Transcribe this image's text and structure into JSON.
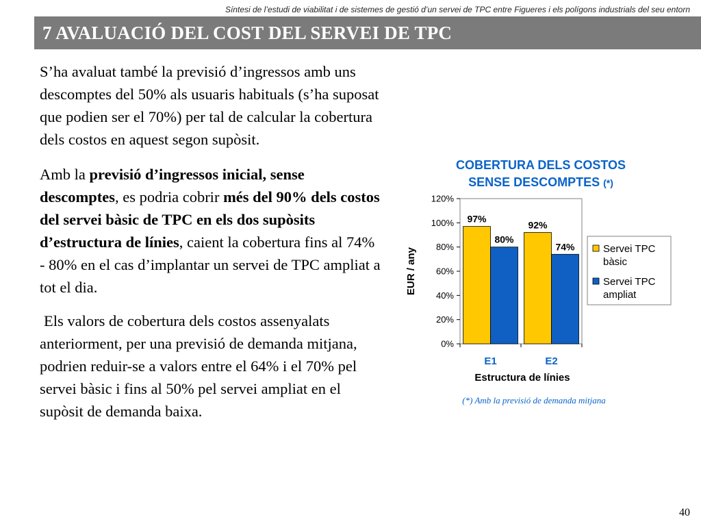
{
  "header": {
    "text": "Síntesi de l’estudi de viabilitat i de sistemes de gestió d’un servei de TPC entre Figueres i els polígons industrials del seu entorn"
  },
  "title": "7 AVALUACIÓ DEL COST DEL SERVEI DE TPC",
  "body": {
    "p1": "S’ha avaluat també la previsió d’ingressos amb uns descomptes del 50% als usuaris habituals (s’ha suposat que podien ser el 70%) per tal de calcular la cobertura dels costos en aquest segon supòsit.",
    "p2_a": "Amb la ",
    "p2_b": "previsió d’ingressos inicial, sense descomptes",
    "p2_c": ", es podria cobrir ",
    "p2_d": "més del 90% dels costos del servei bàsic de TPC en els dos supòsits d’estructura de línies",
    "p2_e": ", caient la cobertura fins al 74% - 80% en el cas d’implantar un servei de TPC ampliat a tot el dia.",
    "p3": "Els valors de cobertura dels costos assenyalats anteriorment, per una previsió de demanda mitjana, podrien reduir-se a valors entre el 64% i el 70% pel servei bàsic i fins al 50% pel servei ampliat en el supòsit de demanda baixa."
  },
  "chart_data": {
    "type": "bar",
    "title_line1": "COBERTURA DELS COSTOS",
    "title_line2": "SENSE DESCOMPTES",
    "title_note": "(*)",
    "categories": [
      "E1",
      "E2"
    ],
    "series": [
      {
        "name": "Servei TPC bàsic",
        "legend_lines": [
          "Servei TPC",
          "bàsic"
        ],
        "values": [
          97,
          92
        ],
        "labels": [
          "97%",
          "92%"
        ],
        "color": "#ffc800"
      },
      {
        "name": "Servei TPC ampliat",
        "legend_lines": [
          "Servei TPC",
          "ampliat"
        ],
        "values": [
          80,
          74
        ],
        "labels": [
          "80%",
          "74%"
        ],
        "color": "#1060c4"
      }
    ],
    "yticks": [
      "0%",
      "20%",
      "40%",
      "60%",
      "80%",
      "100%",
      "120%"
    ],
    "ylim": [
      0,
      120
    ],
    "xlabel": "Estructura de línies",
    "ylabel": "EUR / any",
    "legend": "right",
    "grid": false
  },
  "footnote": "(*) Amb la previsió de demanda mitjana",
  "page_number": "40"
}
